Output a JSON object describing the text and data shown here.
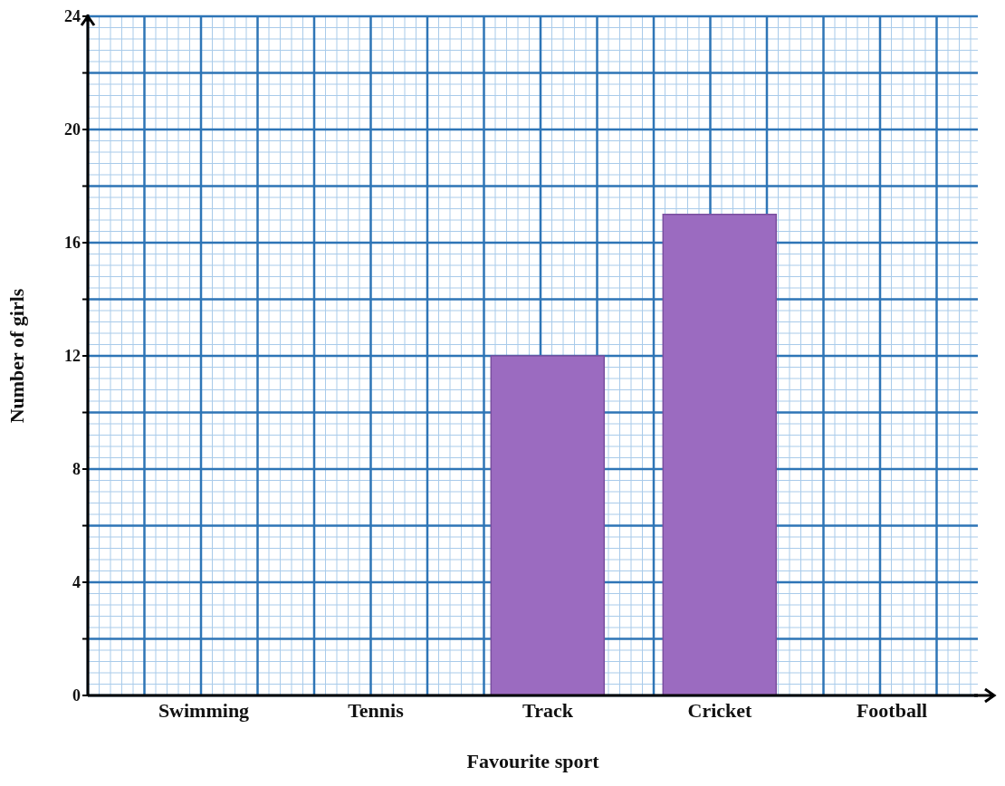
{
  "chart_data": {
    "type": "bar",
    "xlabel": "Favourite sport",
    "ylabel": "Number of girls",
    "categories": [
      "Swimming",
      "Tennis",
      "Track",
      "Cricket",
      "Football"
    ],
    "values": [
      null,
      null,
      12,
      17,
      null
    ],
    "color": "#9b6bc0",
    "ylim": [
      0,
      24
    ],
    "yticks": [
      0,
      {
        "value": 2,
        "label": null
      },
      4,
      {
        "value": 6,
        "label": null
      },
      8,
      {
        "value": 10,
        "label": null
      },
      12,
      {
        "value": 14,
        "label": null
      },
      16,
      {
        "value": 18,
        "label": null
      },
      20,
      {
        "value": 22,
        "label": null
      },
      24
    ],
    "grid": true
  }
}
